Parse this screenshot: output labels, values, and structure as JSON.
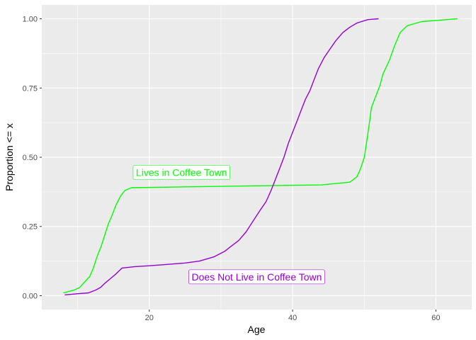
{
  "chart_data": {
    "type": "line",
    "title": "",
    "xlabel": "Age",
    "ylabel": "Proportion <= x",
    "xlim": [
      5,
      65
    ],
    "ylim": [
      -0.05,
      1.05
    ],
    "x_ticks": [
      20,
      40,
      60
    ],
    "x_tick_labels": [
      "20",
      "40",
      "60"
    ],
    "y_ticks": [
      0,
      0.25,
      0.5,
      0.75,
      1
    ],
    "y_tick_labels": [
      "0.00",
      "0.25",
      "0.50",
      "0.75",
      "1.00"
    ],
    "grid": true,
    "series": [
      {
        "color": "#00ff00",
        "points": [
          [
            8,
            0.01
          ],
          [
            9.5,
            0.02
          ],
          [
            10.3,
            0.03
          ],
          [
            11,
            0.05
          ],
          [
            11.7,
            0.07
          ],
          [
            12.2,
            0.1
          ],
          [
            12.7,
            0.14
          ],
          [
            13.3,
            0.18
          ],
          [
            13.8,
            0.22
          ],
          [
            14.3,
            0.26
          ],
          [
            14.8,
            0.29
          ],
          [
            15.4,
            0.33
          ],
          [
            16,
            0.36
          ],
          [
            16.6,
            0.38
          ],
          [
            17.5,
            0.39
          ],
          [
            25,
            0.393
          ],
          [
            35,
            0.397
          ],
          [
            44,
            0.4
          ],
          [
            48,
            0.41
          ],
          [
            49,
            0.43
          ],
          [
            49.5,
            0.46
          ],
          [
            50,
            0.5
          ],
          [
            50.3,
            0.55
          ],
          [
            50.7,
            0.62
          ],
          [
            51,
            0.68
          ],
          [
            51.6,
            0.72
          ],
          [
            52.2,
            0.76
          ],
          [
            52.6,
            0.8
          ],
          [
            53.5,
            0.85
          ],
          [
            54.2,
            0.9
          ],
          [
            55,
            0.95
          ],
          [
            56,
            0.975
          ],
          [
            58,
            0.99
          ],
          [
            63,
            1.0
          ]
        ]
      },
      {
        "color": "#9400d3",
        "points": [
          [
            8.2,
            0.003
          ],
          [
            10,
            0.007
          ],
          [
            11.5,
            0.01
          ],
          [
            12.5,
            0.02
          ],
          [
            13.2,
            0.03
          ],
          [
            13.8,
            0.045
          ],
          [
            14.5,
            0.06
          ],
          [
            15.2,
            0.075
          ],
          [
            15.8,
            0.09
          ],
          [
            16.2,
            0.1
          ],
          [
            18,
            0.105
          ],
          [
            20,
            0.108
          ],
          [
            22,
            0.112
          ],
          [
            25,
            0.118
          ],
          [
            27,
            0.125
          ],
          [
            29,
            0.14
          ],
          [
            30.5,
            0.16
          ],
          [
            31.5,
            0.18
          ],
          [
            32.5,
            0.2
          ],
          [
            33.5,
            0.23
          ],
          [
            34.5,
            0.27
          ],
          [
            35.5,
            0.31
          ],
          [
            36.3,
            0.34
          ],
          [
            37,
            0.38
          ],
          [
            37.6,
            0.42
          ],
          [
            38.2,
            0.46
          ],
          [
            38.8,
            0.5
          ],
          [
            39.4,
            0.55
          ],
          [
            40,
            0.59
          ],
          [
            40.6,
            0.63
          ],
          [
            41.2,
            0.67
          ],
          [
            41.8,
            0.71
          ],
          [
            42.4,
            0.74
          ],
          [
            43,
            0.78
          ],
          [
            43.6,
            0.82
          ],
          [
            44.4,
            0.86
          ],
          [
            45.2,
            0.89
          ],
          [
            46,
            0.92
          ],
          [
            47,
            0.95
          ],
          [
            48,
            0.97
          ],
          [
            49,
            0.985
          ],
          [
            50.5,
            0.997
          ],
          [
            52,
            1.0
          ]
        ]
      }
    ],
    "annotations": [
      {
        "text": "Lives in Coffee Town",
        "x": 24.5,
        "y": 0.445,
        "color": "#00ff00"
      },
      {
        "text": "Does Not Live in Coffee Town",
        "x": 35,
        "y": 0.068,
        "color": "#9400d3"
      }
    ]
  }
}
